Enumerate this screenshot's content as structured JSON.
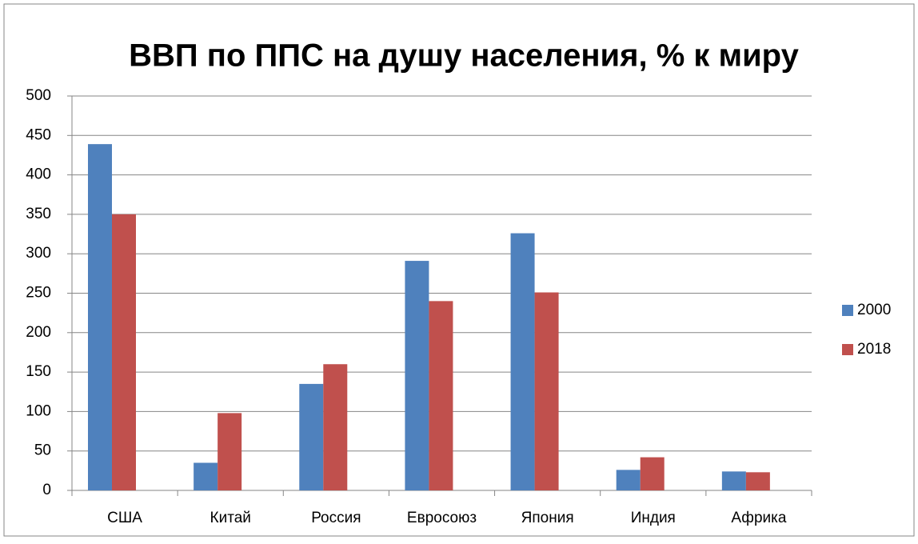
{
  "chart_data": {
    "type": "bar",
    "title": "ВВП по ППС на душу населения, % к миру",
    "categories": [
      "США",
      "Китай",
      "Россия",
      "Евросоюз",
      "Япония",
      "Индия",
      "Африка"
    ],
    "series": [
      {
        "name": "2000",
        "color": "#4f81bd",
        "values": [
          439,
          35,
          135,
          291,
          326,
          26,
          24
        ]
      },
      {
        "name": "2018",
        "color": "#c0504d",
        "values": [
          350,
          98,
          160,
          240,
          251,
          42,
          23
        ]
      }
    ],
    "ylim": [
      0,
      500
    ],
    "yticks": [
      0,
      50,
      100,
      150,
      200,
      250,
      300,
      350,
      400,
      450,
      500
    ],
    "grid": true,
    "legend": "right"
  }
}
